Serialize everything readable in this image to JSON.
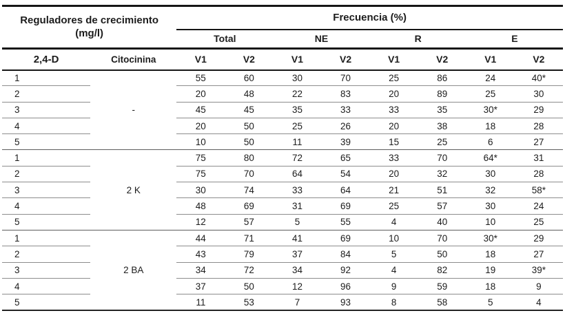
{
  "table": {
    "header": {
      "left_title": "Reguladores de crecimiento",
      "left_subtitle": "(mg/l)",
      "right_title": "Frecuencia (%)",
      "subgroups": [
        "Total",
        "NE",
        "R",
        "E"
      ],
      "col1": "2,4-D",
      "col2": "Citocinina",
      "sub_cols": [
        "V1",
        "V2",
        "V1",
        "V2",
        "V1",
        "V2",
        "V1",
        "V2"
      ]
    },
    "groups": [
      {
        "citocinina": "-",
        "rows": [
          {
            "d": "1",
            "values": [
              "55",
              "60",
              "30",
              "70",
              "25",
              "86",
              "24",
              "40*"
            ]
          },
          {
            "d": "2",
            "values": [
              "20",
              "48",
              "22",
              "83",
              "20",
              "89",
              "25",
              "30"
            ]
          },
          {
            "d": "3",
            "values": [
              "45",
              "45",
              "35",
              "33",
              "33",
              "35",
              "30*",
              "29"
            ]
          },
          {
            "d": "4",
            "values": [
              "20",
              "50",
              "25",
              "26",
              "20",
              "38",
              "18",
              "28"
            ]
          },
          {
            "d": "5",
            "values": [
              "10",
              "50",
              "11",
              "39",
              "15",
              "25",
              "6",
              "27"
            ]
          }
        ]
      },
      {
        "citocinina": "2 K",
        "rows": [
          {
            "d": "1",
            "values": [
              "75",
              "80",
              "72",
              "65",
              "33",
              "70",
              "64*",
              "31"
            ]
          },
          {
            "d": "2",
            "values": [
              "75",
              "70",
              "64",
              "54",
              "20",
              "32",
              "30",
              "28"
            ]
          },
          {
            "d": "3",
            "values": [
              "30",
              "74",
              "33",
              "64",
              "21",
              "51",
              "32",
              "58*"
            ]
          },
          {
            "d": "4",
            "values": [
              "48",
              "69",
              "31",
              "69",
              "25",
              "57",
              "30",
              "24"
            ]
          },
          {
            "d": "5",
            "values": [
              "12",
              "57",
              "5",
              "55",
              "4",
              "40",
              "10",
              "25"
            ]
          }
        ]
      },
      {
        "citocinina": "2 BA",
        "rows": [
          {
            "d": "1",
            "values": [
              "44",
              "71",
              "41",
              "69",
              "10",
              "70",
              "30*",
              "29"
            ]
          },
          {
            "d": "2",
            "values": [
              "43",
              "79",
              "37",
              "84",
              "5",
              "50",
              "18",
              "27"
            ]
          },
          {
            "d": "3",
            "values": [
              "34",
              "72",
              "34",
              "92",
              "4",
              "82",
              "19",
              "39*"
            ]
          },
          {
            "d": "4",
            "values": [
              "37",
              "50",
              "12",
              "96",
              "9",
              "59",
              "18",
              "9"
            ]
          },
          {
            "d": "5",
            "values": [
              "11",
              "53",
              "7",
              "93",
              "8",
              "58",
              "5",
              "4"
            ]
          }
        ]
      }
    ]
  },
  "chart_data": {
    "type": "table",
    "title": "Frecuencia (%)",
    "row_group_labels": [
      "-",
      "2 K",
      "2 BA"
    ],
    "column_groups": [
      "Total",
      "NE",
      "R",
      "E"
    ],
    "sub_columns": [
      "V1",
      "V2"
    ]
  }
}
